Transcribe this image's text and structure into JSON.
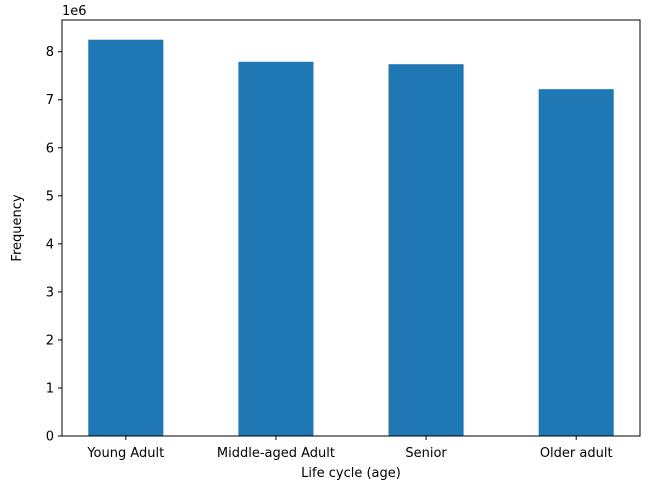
{
  "chart_data": {
    "type": "bar",
    "title": "",
    "xlabel": "Life cycle (age)",
    "ylabel": "Frequency",
    "offset_label": "1e6",
    "categories": [
      "Young Adult",
      "Middle-aged Adult",
      "Senior",
      "Older adult"
    ],
    "values": [
      8250000,
      7790000,
      7740000,
      7220000
    ],
    "yticks": [
      0,
      1,
      2,
      3,
      4,
      5,
      6,
      7,
      8
    ],
    "ylim": [
      0,
      8660000
    ],
    "grid": false,
    "bar_color": "#1f77b4"
  }
}
